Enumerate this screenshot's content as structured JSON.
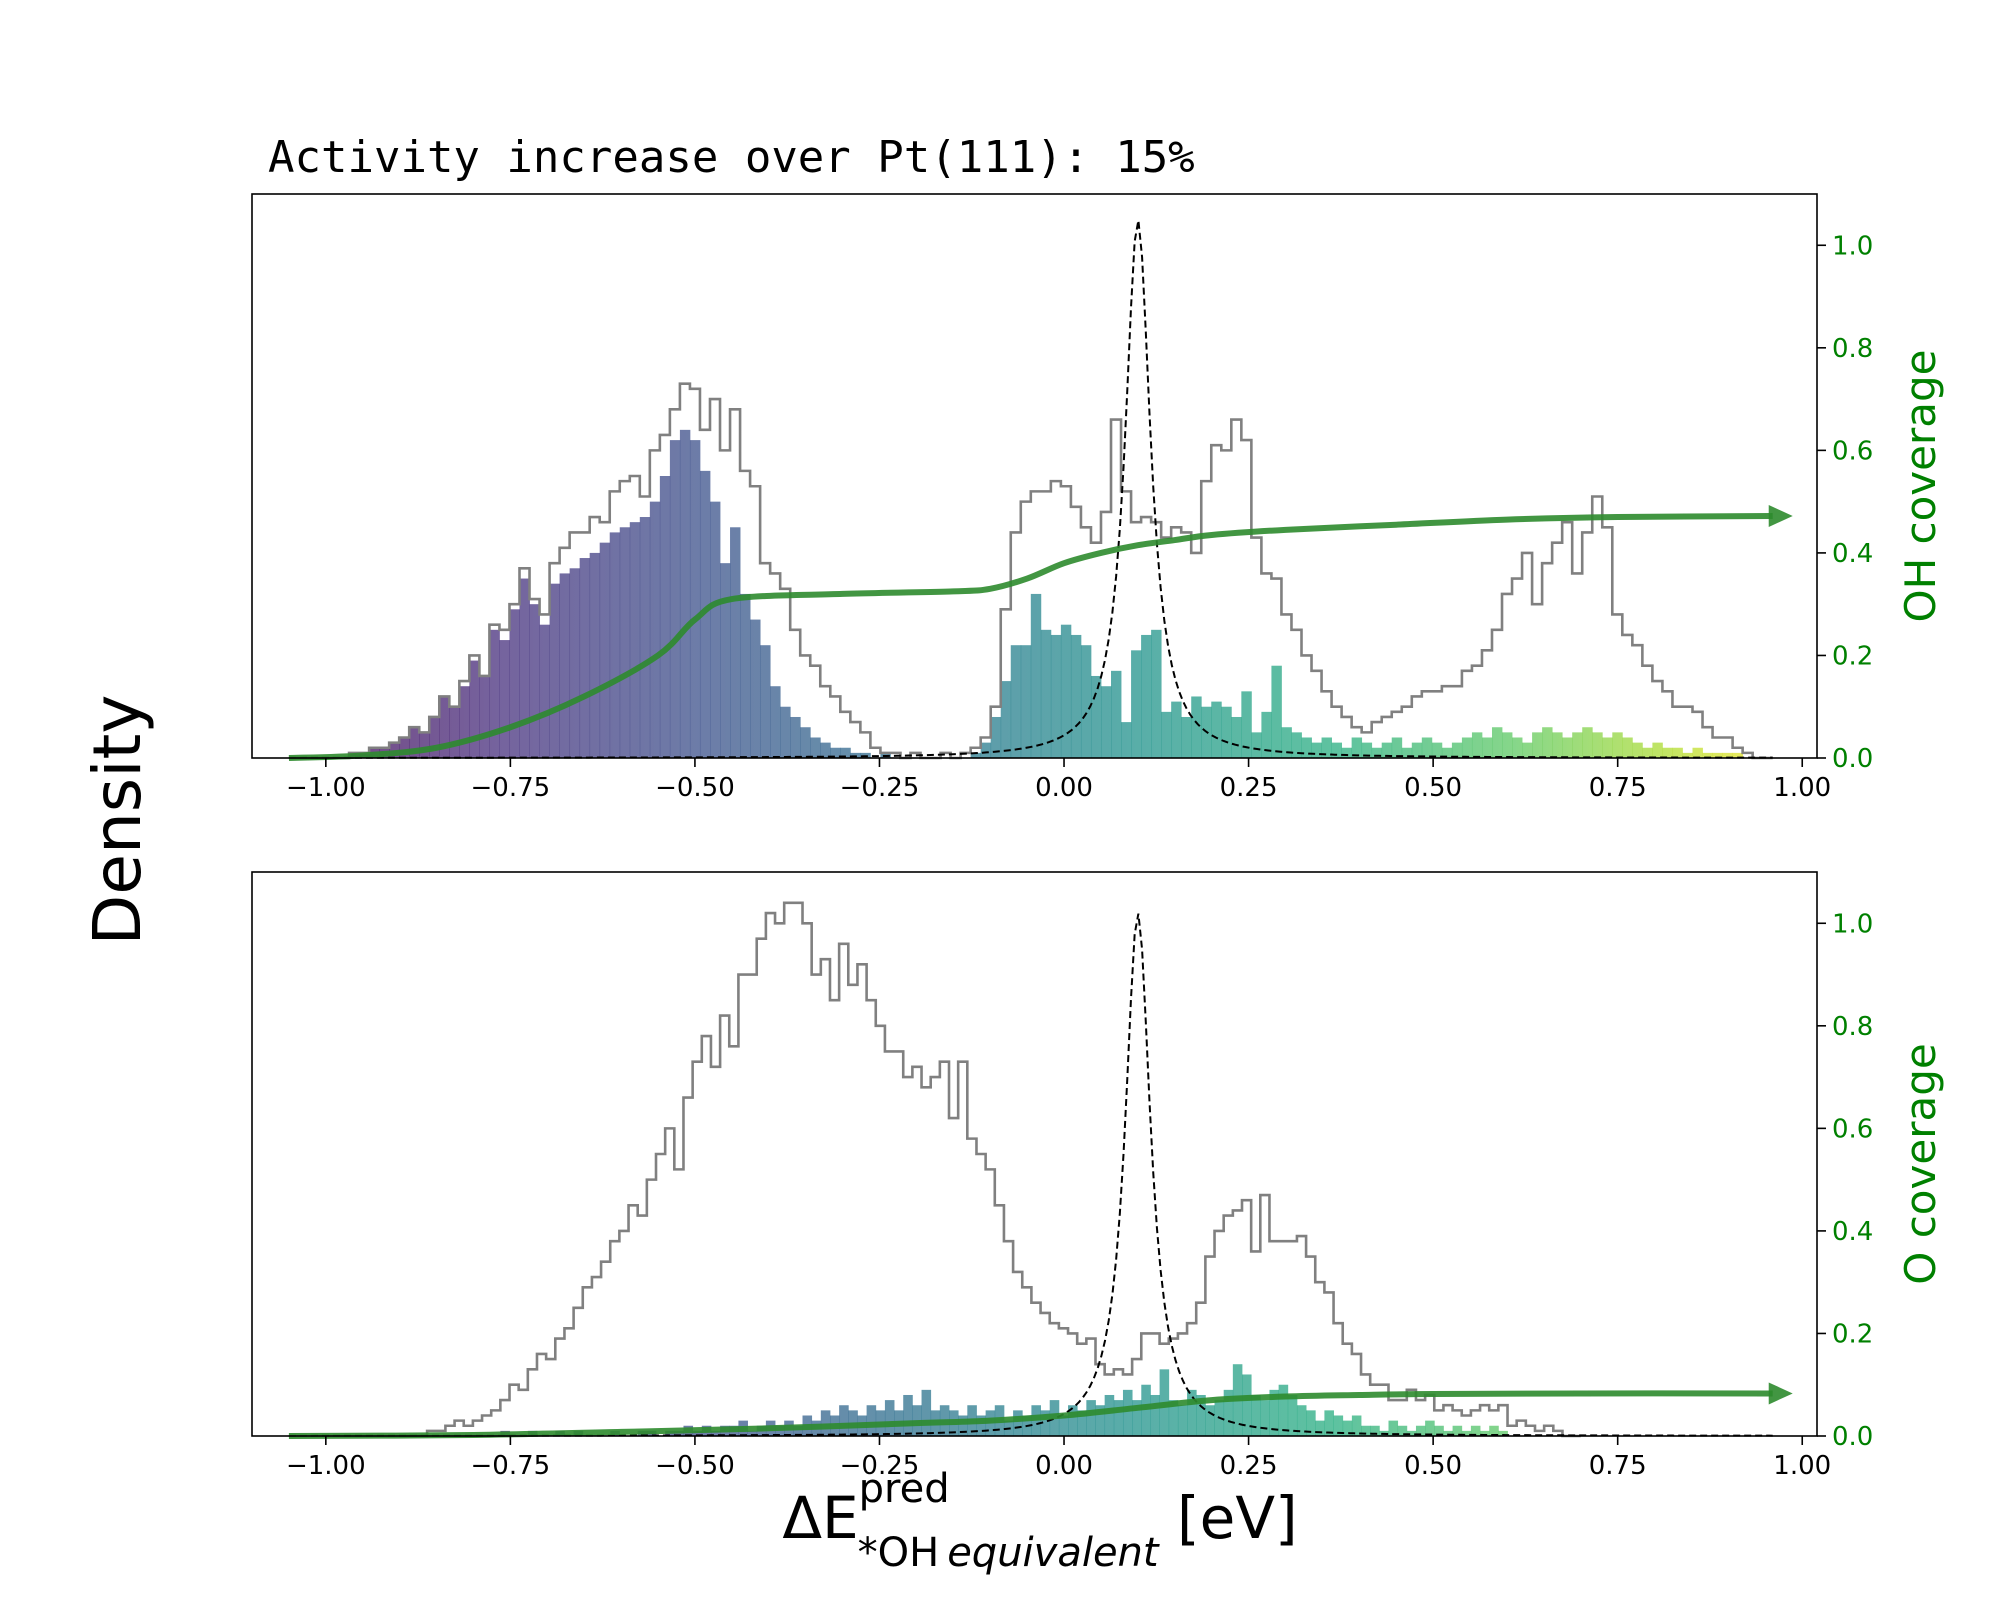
{
  "figure": {
    "title_prefix": "Activity increase over Pt(111):",
    "title_value": "15%",
    "ylabel": "Density",
    "xlabel": {
      "main": "ΔE",
      "sup": "pred",
      "sub": "*OH",
      "sub_italic": "equivalent",
      "unit": " [eV]"
    },
    "colors": {
      "outline": "#808080",
      "coverage": "#2e8b2e",
      "accent_axis": "#008000",
      "volcano": "#000000"
    }
  },
  "chart_data": [
    {
      "type": "bar",
      "name": "OH",
      "right_ylabel": "OH coverage",
      "xlim": [
        -1.1,
        1.02
      ],
      "xticks": [
        -1.0,
        -0.75,
        -0.5,
        -0.25,
        0.0,
        0.25,
        0.5,
        0.75,
        1.0
      ],
      "xtick_labels": [
        "−1.00",
        "−0.75",
        "−0.50",
        "−0.25",
        "0.00",
        "0.25",
        "0.50",
        "0.75",
        "1.00"
      ],
      "ylim_right": [
        0,
        1.1
      ],
      "rticks": [
        0.0,
        0.2,
        0.4,
        0.6,
        0.8,
        1.0
      ],
      "rtick_labels": [
        "0.0",
        "0.2",
        "0.4",
        "0.6",
        "0.8",
        "1.0"
      ],
      "grid": false,
      "bin_range": [
        -1.05,
        0.96
      ],
      "outline_heights": [
        0,
        0,
        0,
        0,
        0,
        0,
        0.01,
        0.01,
        0.02,
        0.02,
        0.03,
        0.04,
        0.06,
        0.05,
        0.08,
        0.12,
        0.1,
        0.15,
        0.2,
        0.16,
        0.26,
        0.25,
        0.3,
        0.37,
        0.31,
        0.28,
        0.38,
        0.41,
        0.44,
        0.44,
        0.47,
        0.46,
        0.52,
        0.54,
        0.55,
        0.51,
        0.6,
        0.63,
        0.68,
        0.73,
        0.72,
        0.64,
        0.7,
        0.6,
        0.68,
        0.56,
        0.53,
        0.38,
        0.36,
        0.33,
        0.25,
        0.2,
        0.18,
        0.14,
        0.12,
        0.09,
        0.07,
        0.05,
        0.02,
        0.01,
        0.01,
        0,
        0.01,
        0,
        0,
        0.01,
        0,
        0.01,
        0.02,
        0.04,
        0.1,
        0.29,
        0.44,
        0.5,
        0.52,
        0.52,
        0.54,
        0.53,
        0.49,
        0.45,
        0.42,
        0.48,
        0.66,
        0.52,
        0.46,
        0.47,
        0.46,
        0.43,
        0.45,
        0.44,
        0.4,
        0.54,
        0.61,
        0.6,
        0.66,
        0.62,
        0.43,
        0.36,
        0.35,
        0.28,
        0.25,
        0.2,
        0.17,
        0.13,
        0.1,
        0.08,
        0.06,
        0.05,
        0.07,
        0.08,
        0.09,
        0.1,
        0.12,
        0.13,
        0.13,
        0.14,
        0.14,
        0.17,
        0.18,
        0.21,
        0.25,
        0.32,
        0.35,
        0.4,
        0.3,
        0.38,
        0.42,
        0.46,
        0.36,
        0.44,
        0.51,
        0.45,
        0.28,
        0.24,
        0.22,
        0.18,
        0.15,
        0.13,
        0.1,
        0.1,
        0.09,
        0.06,
        0.04,
        0.04,
        0.02,
        0.01,
        0,
        0
      ],
      "filled_heights": [
        0,
        0,
        0,
        0,
        0,
        0,
        0.01,
        0.01,
        0.02,
        0.02,
        0.03,
        0.04,
        0.06,
        0.05,
        0.08,
        0.12,
        0.1,
        0.14,
        0.19,
        0.16,
        0.25,
        0.23,
        0.29,
        0.35,
        0.3,
        0.26,
        0.34,
        0.36,
        0.37,
        0.39,
        0.4,
        0.42,
        0.44,
        0.45,
        0.46,
        0.47,
        0.5,
        0.55,
        0.62,
        0.64,
        0.62,
        0.56,
        0.5,
        0.38,
        0.45,
        0.32,
        0.27,
        0.22,
        0.14,
        0.1,
        0.08,
        0.06,
        0.04,
        0.03,
        0.02,
        0.02,
        0.01,
        0.01,
        0,
        0.01,
        0,
        0,
        0,
        0,
        0,
        0,
        0,
        0,
        0.01,
        0.03,
        0.08,
        0.15,
        0.22,
        0.22,
        0.32,
        0.25,
        0.24,
        0.26,
        0.24,
        0.22,
        0.16,
        0.14,
        0.17,
        0.07,
        0.21,
        0.24,
        0.25,
        0.09,
        0.11,
        0.08,
        0.12,
        0.1,
        0.11,
        0.1,
        0.08,
        0.13,
        0.05,
        0.09,
        0.18,
        0.06,
        0.05,
        0.04,
        0.03,
        0.04,
        0.03,
        0.02,
        0.04,
        0.03,
        0.02,
        0.03,
        0.04,
        0.02,
        0.03,
        0.04,
        0.03,
        0.02,
        0.03,
        0.04,
        0.05,
        0.04,
        0.06,
        0.05,
        0.04,
        0.03,
        0.05,
        0.06,
        0.05,
        0.04,
        0.05,
        0.06,
        0.05,
        0.04,
        0.05,
        0.04,
        0.03,
        0.02,
        0.03,
        0.02,
        0.02,
        0.01,
        0.02,
        0.01,
        0.01,
        0.01,
        0.01,
        0,
        0,
        0,
        0
      ],
      "coverage_curve": {
        "x": [
          -1.05,
          -0.95,
          -0.85,
          -0.75,
          -0.65,
          -0.55,
          -0.5,
          -0.45,
          -0.3,
          -0.15,
          -0.1,
          -0.05,
          0.0,
          0.05,
          0.1,
          0.15,
          0.2,
          0.3,
          0.45,
          0.6,
          0.75,
          0.96
        ],
        "y": [
          0,
          0.005,
          0.02,
          0.06,
          0.12,
          0.2,
          0.27,
          0.31,
          0.32,
          0.325,
          0.33,
          0.35,
          0.38,
          0.4,
          0.415,
          0.425,
          0.435,
          0.445,
          0.455,
          0.465,
          0.47,
          0.472
        ]
      },
      "volcano": {
        "peak_x": 0.1,
        "peak_y": 1.05,
        "gamma": 0.021
      }
    },
    {
      "type": "bar",
      "name": "O",
      "right_ylabel": "O coverage",
      "xlim": [
        -1.1,
        1.02
      ],
      "xticks": [
        -1.0,
        -0.75,
        -0.5,
        -0.25,
        0.0,
        0.25,
        0.5,
        0.75,
        1.0
      ],
      "xtick_labels": [
        "−1.00",
        "−0.75",
        "−0.50",
        "−0.25",
        "0.00",
        "0.25",
        "0.50",
        "0.75",
        "1.00"
      ],
      "ylim_right": [
        0,
        1.1
      ],
      "rticks": [
        0.0,
        0.2,
        0.4,
        0.6,
        0.8,
        1.0
      ],
      "rtick_labels": [
        "0.0",
        "0.2",
        "0.4",
        "0.6",
        "0.8",
        "1.0"
      ],
      "grid": false,
      "bin_range": [
        -0.9,
        0.7
      ],
      "outline_heights": [
        0,
        0,
        0,
        0.01,
        0.01,
        0.02,
        0.03,
        0.02,
        0.03,
        0.04,
        0.05,
        0.07,
        0.1,
        0.09,
        0.13,
        0.16,
        0.15,
        0.19,
        0.21,
        0.25,
        0.29,
        0.31,
        0.34,
        0.38,
        0.4,
        0.45,
        0.43,
        0.5,
        0.55,
        0.6,
        0.52,
        0.66,
        0.73,
        0.78,
        0.72,
        0.82,
        0.76,
        0.9,
        0.9,
        0.97,
        1.02,
        1.0,
        1.04,
        1.04,
        1.0,
        0.9,
        0.93,
        0.85,
        0.96,
        0.88,
        0.92,
        0.85,
        0.8,
        0.75,
        0.75,
        0.7,
        0.72,
        0.68,
        0.7,
        0.73,
        0.62,
        0.73,
        0.58,
        0.55,
        0.52,
        0.45,
        0.38,
        0.32,
        0.29,
        0.26,
        0.24,
        0.22,
        0.21,
        0.2,
        0.18,
        0.19,
        0.14,
        0.12,
        0.13,
        0.12,
        0.15,
        0.2,
        0.2,
        0.18,
        0.19,
        0.2,
        0.22,
        0.26,
        0.35,
        0.4,
        0.43,
        0.44,
        0.46,
        0.36,
        0.47,
        0.38,
        0.38,
        0.38,
        0.39,
        0.35,
        0.3,
        0.28,
        0.22,
        0.18,
        0.16,
        0.12,
        0.1,
        0.1,
        0.07,
        0.07,
        0.09,
        0.07,
        0.08,
        0.05,
        0.06,
        0.05,
        0.04,
        0.05,
        0.06,
        0.05,
        0.06,
        0.02,
        0.03,
        0.02,
        0.01,
        0.02,
        0.01,
        0,
        0
      ],
      "filled_heights": [
        0,
        0,
        0,
        0,
        0,
        0,
        0,
        0,
        0,
        0,
        0,
        0.01,
        0,
        0,
        0.01,
        0,
        0,
        0.01,
        0,
        0.01,
        0,
        0,
        0,
        0.01,
        0,
        0,
        0.01,
        0.01,
        0,
        0.01,
        0.01,
        0.02,
        0.01,
        0.02,
        0.01,
        0.02,
        0.02,
        0.03,
        0.01,
        0.02,
        0.03,
        0.02,
        0.03,
        0.02,
        0.04,
        0.03,
        0.05,
        0.04,
        0.06,
        0.05,
        0.04,
        0.06,
        0.05,
        0.07,
        0.05,
        0.08,
        0.06,
        0.09,
        0.05,
        0.06,
        0.05,
        0.04,
        0.06,
        0.04,
        0.05,
        0.06,
        0.03,
        0.05,
        0.04,
        0.06,
        0.05,
        0.07,
        0.04,
        0.06,
        0.05,
        0.07,
        0.06,
        0.08,
        0.07,
        0.09,
        0.07,
        0.1,
        0.08,
        0.13,
        0.07,
        0.06,
        0.09,
        0.08,
        0.06,
        0.07,
        0.09,
        0.14,
        0.12,
        0.08,
        0.07,
        0.09,
        0.1,
        0.08,
        0.06,
        0.05,
        0.03,
        0.05,
        0.04,
        0.03,
        0.04,
        0.02,
        0.02,
        0.01,
        0.03,
        0.02,
        0.01,
        0.02,
        0.03,
        0.02,
        0.01,
        0.02,
        0.01,
        0.02,
        0.01,
        0.02,
        0.01,
        0,
        0,
        0,
        0,
        0,
        0,
        0
      ],
      "coverage_curve": {
        "x": [
          -1.05,
          -0.8,
          -0.6,
          -0.4,
          -0.2,
          -0.1,
          0.0,
          0.1,
          0.2,
          0.3,
          0.4,
          0.5,
          0.7,
          0.96
        ],
        "y": [
          0,
          0.002,
          0.008,
          0.015,
          0.025,
          0.03,
          0.04,
          0.055,
          0.07,
          0.077,
          0.08,
          0.082,
          0.083,
          0.083
        ]
      },
      "volcano": {
        "peak_x": 0.1,
        "peak_y": 1.02,
        "gamma": 0.021
      }
    }
  ]
}
